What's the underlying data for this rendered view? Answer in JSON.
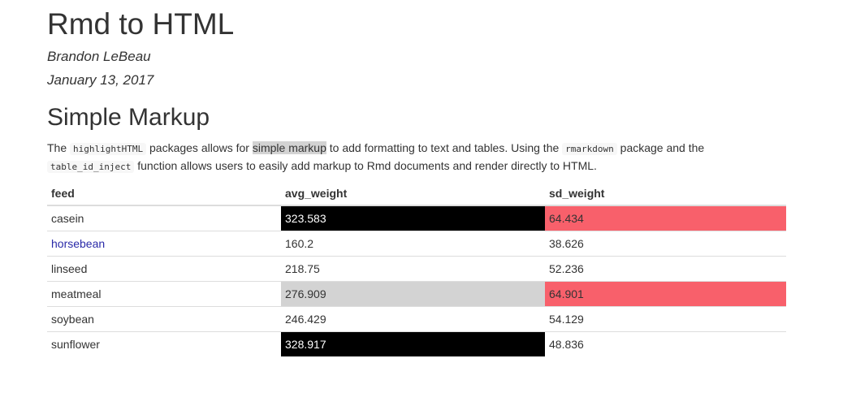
{
  "title": "Rmd to HTML",
  "author": "Brandon LeBeau",
  "date": "January 13, 2017",
  "section_heading": "Simple Markup",
  "paragraph": {
    "t1": "The ",
    "code1": "highlightHTML",
    "t2": " packages allows for ",
    "highlight": "simple markup",
    "t3": " to add formatting to text and tables. Using the ",
    "code2": "rmarkdown",
    "t4": " package and the ",
    "code3": "table_id_inject",
    "t5": " function allows users to easily add markup to Rmd documents and render directly to HTML."
  },
  "table": {
    "headers": [
      "feed",
      "avg_weight",
      "sd_weight"
    ],
    "rows": [
      {
        "feed": "casein",
        "avg_weight": "323.583",
        "sd_weight": "64.434",
        "avg_bg": "#000000",
        "avg_color": "#ffffff",
        "sd_bg": "#f8606b",
        "sd_color": "#333333",
        "feed_color": "#333333"
      },
      {
        "feed": "horsebean",
        "avg_weight": "160.2",
        "sd_weight": "38.626",
        "avg_bg": "",
        "avg_color": "#333333",
        "sd_bg": "",
        "sd_color": "#333333",
        "feed_color": "#2a2aa8"
      },
      {
        "feed": "linseed",
        "avg_weight": "218.75",
        "sd_weight": "52.236",
        "avg_bg": "",
        "avg_color": "#333333",
        "sd_bg": "",
        "sd_color": "#333333",
        "feed_color": "#333333"
      },
      {
        "feed": "meatmeal",
        "avg_weight": "276.909",
        "sd_weight": "64.901",
        "avg_bg": "#d3d3d3",
        "avg_color": "#333333",
        "sd_bg": "#f8606b",
        "sd_color": "#333333",
        "feed_color": "#333333"
      },
      {
        "feed": "soybean",
        "avg_weight": "246.429",
        "sd_weight": "54.129",
        "avg_bg": "",
        "avg_color": "#333333",
        "sd_bg": "",
        "sd_color": "#333333",
        "feed_color": "#333333"
      },
      {
        "feed": "sunflower",
        "avg_weight": "328.917",
        "sd_weight": "48.836",
        "avg_bg": "#000000",
        "avg_color": "#ffffff",
        "sd_bg": "",
        "sd_color": "#333333",
        "feed_color": "#333333"
      }
    ]
  }
}
